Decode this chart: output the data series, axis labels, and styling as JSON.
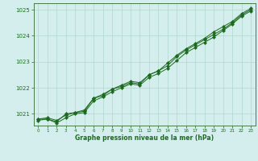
{
  "x": [
    0,
    1,
    2,
    3,
    4,
    5,
    6,
    7,
    8,
    9,
    10,
    11,
    12,
    13,
    14,
    15,
    16,
    17,
    18,
    19,
    20,
    21,
    22,
    23
  ],
  "line1": [
    1020.8,
    1020.85,
    1020.75,
    1020.95,
    1021.05,
    1021.15,
    1021.6,
    1021.75,
    1021.95,
    1022.05,
    1022.2,
    1022.15,
    1022.5,
    1022.65,
    1022.85,
    1023.2,
    1023.45,
    1023.65,
    1023.85,
    1024.05,
    1024.25,
    1024.5,
    1024.8,
    1025.0
  ],
  "line2": [
    1020.8,
    1020.8,
    1020.65,
    1020.85,
    1021.0,
    1021.05,
    1021.5,
    1021.65,
    1021.85,
    1022.0,
    1022.15,
    1022.1,
    1022.4,
    1022.55,
    1022.75,
    1023.05,
    1023.35,
    1023.55,
    1023.75,
    1023.95,
    1024.2,
    1024.45,
    1024.75,
    1024.95
  ],
  "line3": [
    1020.75,
    1020.8,
    1020.7,
    1021.0,
    1021.05,
    1021.1,
    1021.6,
    1021.7,
    1021.95,
    1022.1,
    1022.25,
    1022.2,
    1022.5,
    1022.65,
    1022.95,
    1023.25,
    1023.5,
    1023.7,
    1023.9,
    1024.15,
    1024.35,
    1024.55,
    1024.85,
    1025.05
  ],
  "line_color": "#1a6b1a",
  "bg_color": "#d4eeed",
  "grid_color": "#b0d8cc",
  "xlabel": "Graphe pression niveau de la mer (hPa)",
  "ylim": [
    1020.55,
    1025.25
  ],
  "xlim": [
    -0.5,
    23.5
  ],
  "yticks": [
    1021,
    1022,
    1023,
    1024,
    1025
  ],
  "xticks": [
    0,
    1,
    2,
    3,
    4,
    5,
    6,
    7,
    8,
    9,
    10,
    11,
    12,
    13,
    14,
    15,
    16,
    17,
    18,
    19,
    20,
    21,
    22,
    23
  ]
}
